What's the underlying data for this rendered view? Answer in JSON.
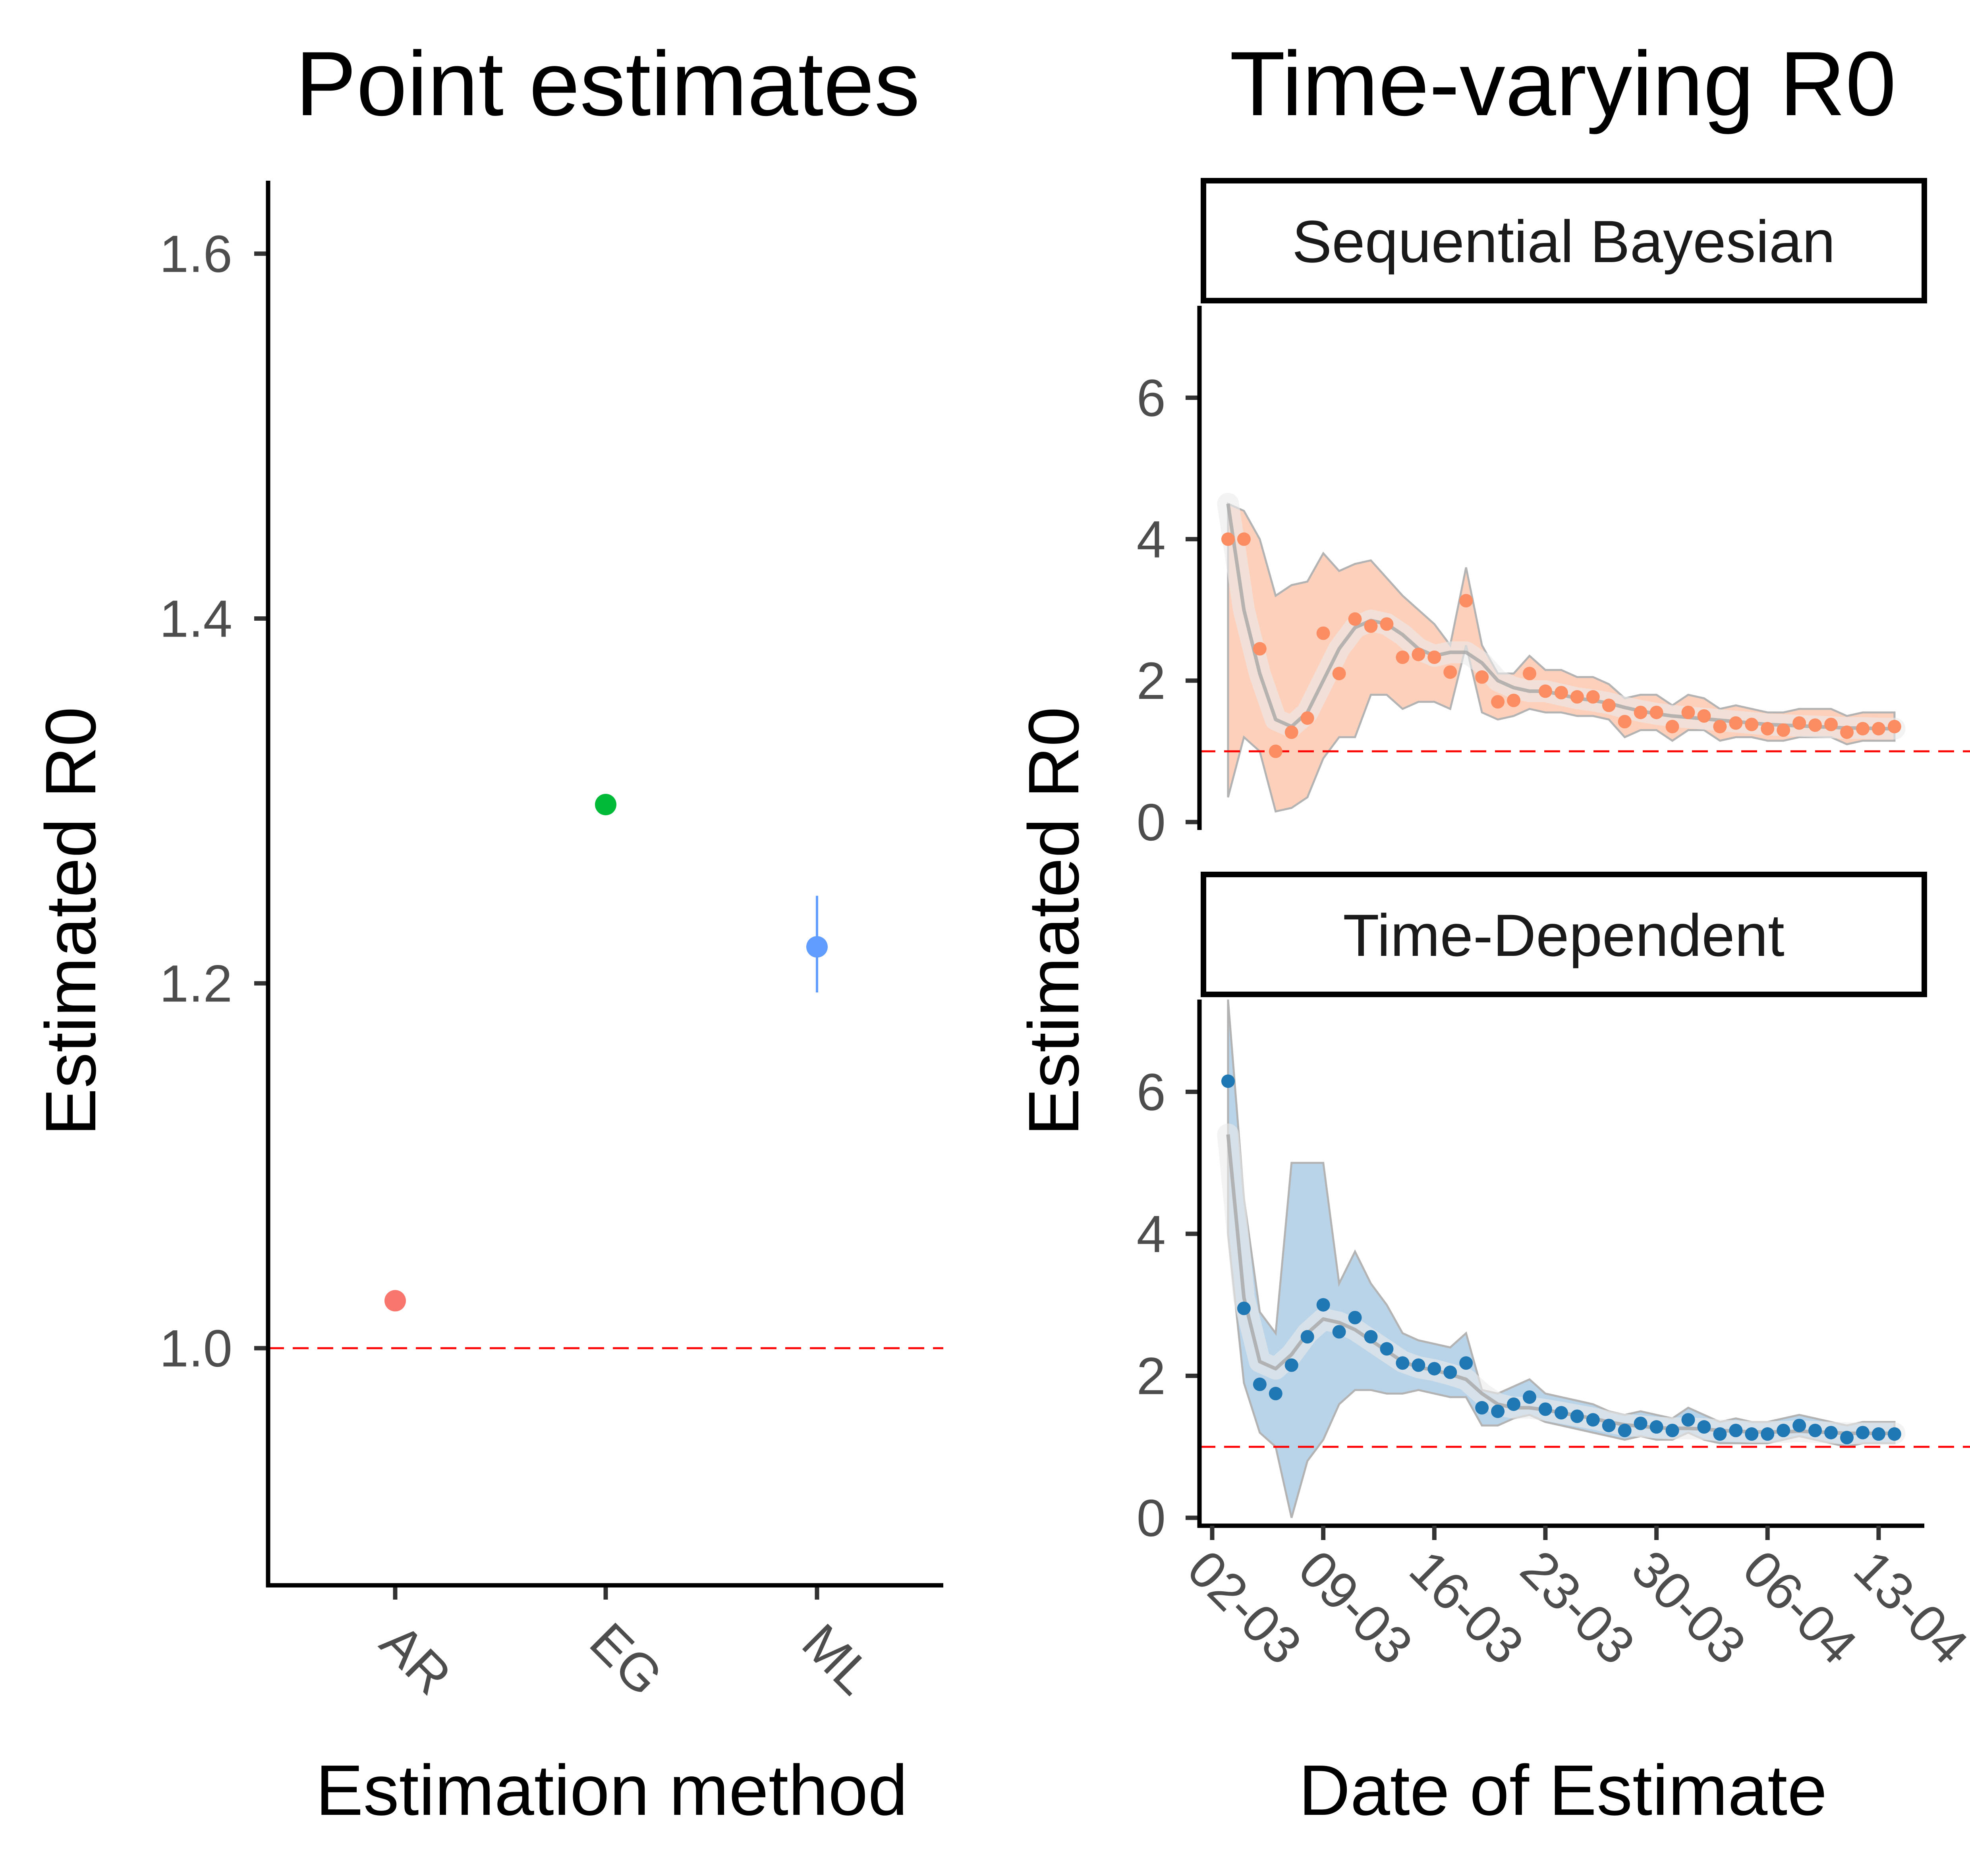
{
  "chart_data": [
    {
      "type": "scatter",
      "title": "Point estimates",
      "xlabel": "Estimation method",
      "ylabel": "Estimated R0",
      "categories": [
        "AR",
        "EG",
        "ML"
      ],
      "values": [
        1.026,
        1.298,
        1.22
      ],
      "error": [
        null,
        null,
        [
          1.195,
          1.248
        ]
      ],
      "colors": [
        "#F8766D",
        "#00BA38",
        "#619CFF"
      ],
      "ylim": [
        0.87,
        1.64
      ],
      "yticks": [
        1.0,
        1.2,
        1.4,
        1.6
      ],
      "ytick_labels": [
        "1.0",
        "1.2",
        "1.4",
        "1.6"
      ],
      "reference_line": 1.0,
      "reference_color": "#FF0000",
      "grid": false
    },
    {
      "type": "scatter",
      "title": "Time-varying R0",
      "xlabel": "Date of Estimate",
      "ylabel": "Estimated R0",
      "x_ticks": [
        "02-03",
        "09-03",
        "16-03",
        "23-03",
        "30-03",
        "06-04",
        "13-04"
      ],
      "x_dates": [
        "02-03",
        "03-03",
        "04-03",
        "05-03",
        "06-03",
        "07-03",
        "08-03",
        "09-03",
        "10-03",
        "11-03",
        "12-03",
        "13-03",
        "14-03",
        "15-03",
        "16-03",
        "17-03",
        "18-03",
        "19-03",
        "20-03",
        "21-03",
        "22-03",
        "23-03",
        "24-03",
        "25-03",
        "26-03",
        "27-03",
        "28-03",
        "29-03",
        "30-03",
        "31-03",
        "01-04",
        "02-04",
        "03-04",
        "04-04",
        "05-04",
        "06-04",
        "07-04",
        "08-04",
        "09-04",
        "10-04",
        "11-04",
        "12-04",
        "13-04",
        "14-04"
      ],
      "yticks": [
        0,
        2,
        4,
        6
      ],
      "ytick_labels": [
        "0",
        "2",
        "4",
        "6"
      ],
      "ylim": [
        0,
        7.3
      ],
      "reference_line": 1.0,
      "reference_color": "#FF0000",
      "grid": false,
      "panels": [
        {
          "name": "Sequential Bayesian",
          "color": "#FC8D62",
          "band_color": "#FDD0BC",
          "x_start": "03-03",
          "values": [
            4.0,
            4.0,
            2.45,
            1.0,
            1.27,
            1.47,
            2.67,
            2.1,
            2.87,
            2.77,
            2.8,
            2.33,
            2.37,
            2.33,
            2.12,
            3.13,
            2.05,
            1.7,
            1.72,
            2.1,
            1.85,
            1.83,
            1.77,
            1.77,
            1.65,
            1.42,
            1.55,
            1.55,
            1.35,
            1.55,
            1.5,
            1.35,
            1.4,
            1.38,
            1.32,
            1.3,
            1.4,
            1.37,
            1.38,
            1.27,
            1.32,
            1.32,
            1.35
          ],
          "lower": [
            0.35,
            1.2,
            1.0,
            0.15,
            0.2,
            0.35,
            0.9,
            1.2,
            1.2,
            1.8,
            1.8,
            1.6,
            1.7,
            1.7,
            1.6,
            2.5,
            1.55,
            1.45,
            1.5,
            1.6,
            1.55,
            1.55,
            1.5,
            1.5,
            1.45,
            1.2,
            1.3,
            1.3,
            1.15,
            1.3,
            1.3,
            1.15,
            1.2,
            1.2,
            1.15,
            1.15,
            1.2,
            1.2,
            1.2,
            1.1,
            1.15,
            1.15,
            1.15
          ],
          "upper": [
            4.5,
            4.4,
            4.0,
            3.2,
            3.35,
            3.4,
            3.8,
            3.55,
            3.65,
            3.7,
            3.45,
            3.2,
            3.0,
            2.8,
            2.5,
            3.6,
            2.5,
            2.1,
            2.1,
            2.35,
            2.15,
            2.15,
            2.05,
            2.05,
            1.95,
            1.75,
            1.8,
            1.8,
            1.65,
            1.8,
            1.75,
            1.6,
            1.65,
            1.6,
            1.55,
            1.55,
            1.6,
            1.6,
            1.6,
            1.5,
            1.55,
            1.55,
            1.55
          ],
          "smooth": [
            4.5,
            3.0,
            2.1,
            1.45,
            1.35,
            1.55,
            2.0,
            2.45,
            2.75,
            2.85,
            2.8,
            2.65,
            2.45,
            2.35,
            2.4,
            2.4,
            2.25,
            2.0,
            1.9,
            1.85,
            1.85,
            1.8,
            1.75,
            1.72,
            1.68,
            1.62,
            1.57,
            1.53,
            1.5,
            1.48,
            1.46,
            1.44,
            1.42,
            1.4,
            1.38,
            1.37,
            1.36,
            1.35,
            1.34,
            1.33,
            1.33,
            1.32,
            1.32
          ]
        },
        {
          "name": "Time-Dependent",
          "color": "#1F78B4",
          "band_color": "#B9D3E8",
          "x_start": "03-03",
          "values": [
            6.15,
            2.95,
            1.88,
            1.75,
            2.15,
            2.55,
            3.0,
            2.62,
            2.82,
            2.55,
            2.38,
            2.18,
            2.15,
            2.1,
            2.05,
            2.18,
            1.55,
            1.5,
            1.6,
            1.7,
            1.53,
            1.48,
            1.43,
            1.38,
            1.3,
            1.23,
            1.33,
            1.28,
            1.23,
            1.38,
            1.28,
            1.18,
            1.23,
            1.18,
            1.18,
            1.23,
            1.3,
            1.23,
            1.2,
            1.13,
            1.2,
            1.18,
            1.18
          ],
          "lower": [
            4.0,
            1.9,
            1.2,
            1.0,
            0.0,
            0.8,
            1.1,
            1.6,
            1.8,
            1.8,
            1.75,
            1.75,
            1.8,
            1.75,
            1.7,
            1.7,
            1.3,
            1.3,
            1.4,
            1.45,
            1.35,
            1.3,
            1.25,
            1.2,
            1.15,
            1.1,
            1.15,
            1.1,
            1.1,
            1.2,
            1.1,
            1.05,
            1.05,
            1.05,
            1.05,
            1.1,
            1.15,
            1.1,
            1.05,
            1.0,
            1.05,
            1.05,
            1.05
          ],
          "upper": [
            7.5,
            4.5,
            2.9,
            2.6,
            5.0,
            5.0,
            5.0,
            3.3,
            3.75,
            3.3,
            3.0,
            2.6,
            2.5,
            2.45,
            2.4,
            2.6,
            1.8,
            1.75,
            1.85,
            1.95,
            1.75,
            1.7,
            1.65,
            1.6,
            1.5,
            1.45,
            1.5,
            1.45,
            1.4,
            1.55,
            1.45,
            1.35,
            1.4,
            1.35,
            1.35,
            1.4,
            1.45,
            1.4,
            1.35,
            1.3,
            1.35,
            1.35,
            1.35
          ],
          "smooth": [
            5.4,
            3.1,
            2.2,
            2.1,
            2.3,
            2.6,
            2.8,
            2.75,
            2.65,
            2.5,
            2.35,
            2.2,
            2.12,
            2.08,
            2.02,
            1.95,
            1.75,
            1.6,
            1.55,
            1.55,
            1.52,
            1.48,
            1.44,
            1.4,
            1.35,
            1.31,
            1.29,
            1.27,
            1.26,
            1.26,
            1.25,
            1.23,
            1.22,
            1.21,
            1.21,
            1.21,
            1.22,
            1.21,
            1.2,
            1.19,
            1.19,
            1.19,
            1.19
          ]
        }
      ]
    }
  ]
}
